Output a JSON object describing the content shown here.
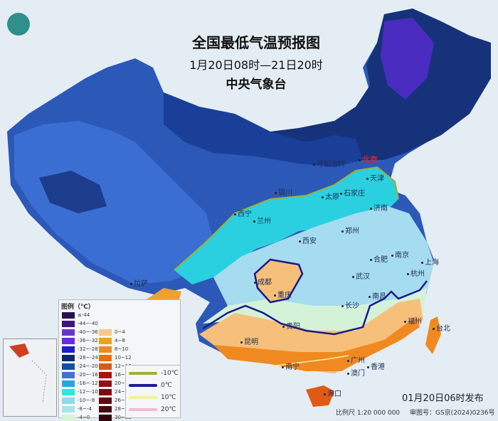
{
  "header": {
    "title": "全国最低气温预报图",
    "period": "1月20日08时—21日20时",
    "issuer": "中央气象台"
  },
  "logo": {
    "icon": "cma-logo-icon"
  },
  "cities": [
    {
      "name": "北京",
      "capital": true
    },
    {
      "name": "天津"
    },
    {
      "name": "石家庄"
    },
    {
      "name": "太原"
    },
    {
      "name": "济南"
    },
    {
      "name": "呼和浩特"
    },
    {
      "name": "银川"
    },
    {
      "name": "西宁"
    },
    {
      "name": "兰州"
    },
    {
      "name": "西安"
    },
    {
      "name": "郑州"
    },
    {
      "name": "合肥"
    },
    {
      "name": "南京"
    },
    {
      "name": "上海"
    },
    {
      "name": "杭州"
    },
    {
      "name": "武汉"
    },
    {
      "name": "成都"
    },
    {
      "name": "重庆"
    },
    {
      "name": "长沙"
    },
    {
      "name": "南昌"
    },
    {
      "name": "福州"
    },
    {
      "name": "贵阳"
    },
    {
      "name": "昆明"
    },
    {
      "name": "南宁"
    },
    {
      "name": "广州"
    },
    {
      "name": "香港"
    },
    {
      "name": "澳门"
    },
    {
      "name": "拉萨"
    },
    {
      "name": "海口"
    },
    {
      "name": "台北"
    }
  ],
  "legend": {
    "title": "图例（℃）",
    "left": [
      {
        "label": "≤-44",
        "color": "#2a0f4f"
      },
      {
        "label": "-44~-40",
        "color": "#3f1480"
      },
      {
        "label": "-40~-36",
        "color": "#6a35c8"
      },
      {
        "label": "-36~-32",
        "color": "#6a2be0"
      },
      {
        "label": "-32~-28",
        "color": "#1c1ed0"
      },
      {
        "label": "-28~-24",
        "color": "#0c2a6e"
      },
      {
        "label": "-24~-20",
        "color": "#1450a8"
      },
      {
        "label": "-20~-16",
        "color": "#3f74d0"
      },
      {
        "label": "-16~-12",
        "color": "#22a8e0"
      },
      {
        "label": "-12~-10",
        "color": "#2ae8e0"
      },
      {
        "label": "-10~-8",
        "color": "#8ed8f0"
      },
      {
        "label": "-8~-4",
        "color": "#a8e4ec"
      },
      {
        "label": "-4~0",
        "color": "#d6f4d8"
      }
    ],
    "right": [
      {
        "label": "0~4",
        "color": "#f6c88a"
      },
      {
        "label": "4~8",
        "color": "#f0a020"
      },
      {
        "label": "8~10",
        "color": "#f08a20"
      },
      {
        "label": "10~12",
        "color": "#f06a10"
      },
      {
        "label": "12~16",
        "color": "#d85a18"
      },
      {
        "label": "16~20",
        "color": "#b01010"
      },
      {
        "label": "20~24",
        "color": "#980c14"
      },
      {
        "label": "24~26",
        "color": "#7c0a10"
      },
      {
        "label": "26~28",
        "color": "#5e0a10"
      },
      {
        "label": "28~30",
        "color": "#480810"
      },
      {
        "label": "30~32",
        "color": "#30060c"
      }
    ],
    "isolines": [
      {
        "label": "-10℃",
        "color": "#a0b030"
      },
      {
        "label": "0℃",
        "color": "#1a1a9a"
      },
      {
        "label": "10℃",
        "color": "#f0f0a0"
      },
      {
        "label": "20℃",
        "color": "#f4b8d0"
      }
    ]
  },
  "footer": {
    "issued": "01月20日06时发布",
    "scale": "比例尺 1:20 000 000",
    "review_no": "审图号：GS京(2024)0236号"
  }
}
